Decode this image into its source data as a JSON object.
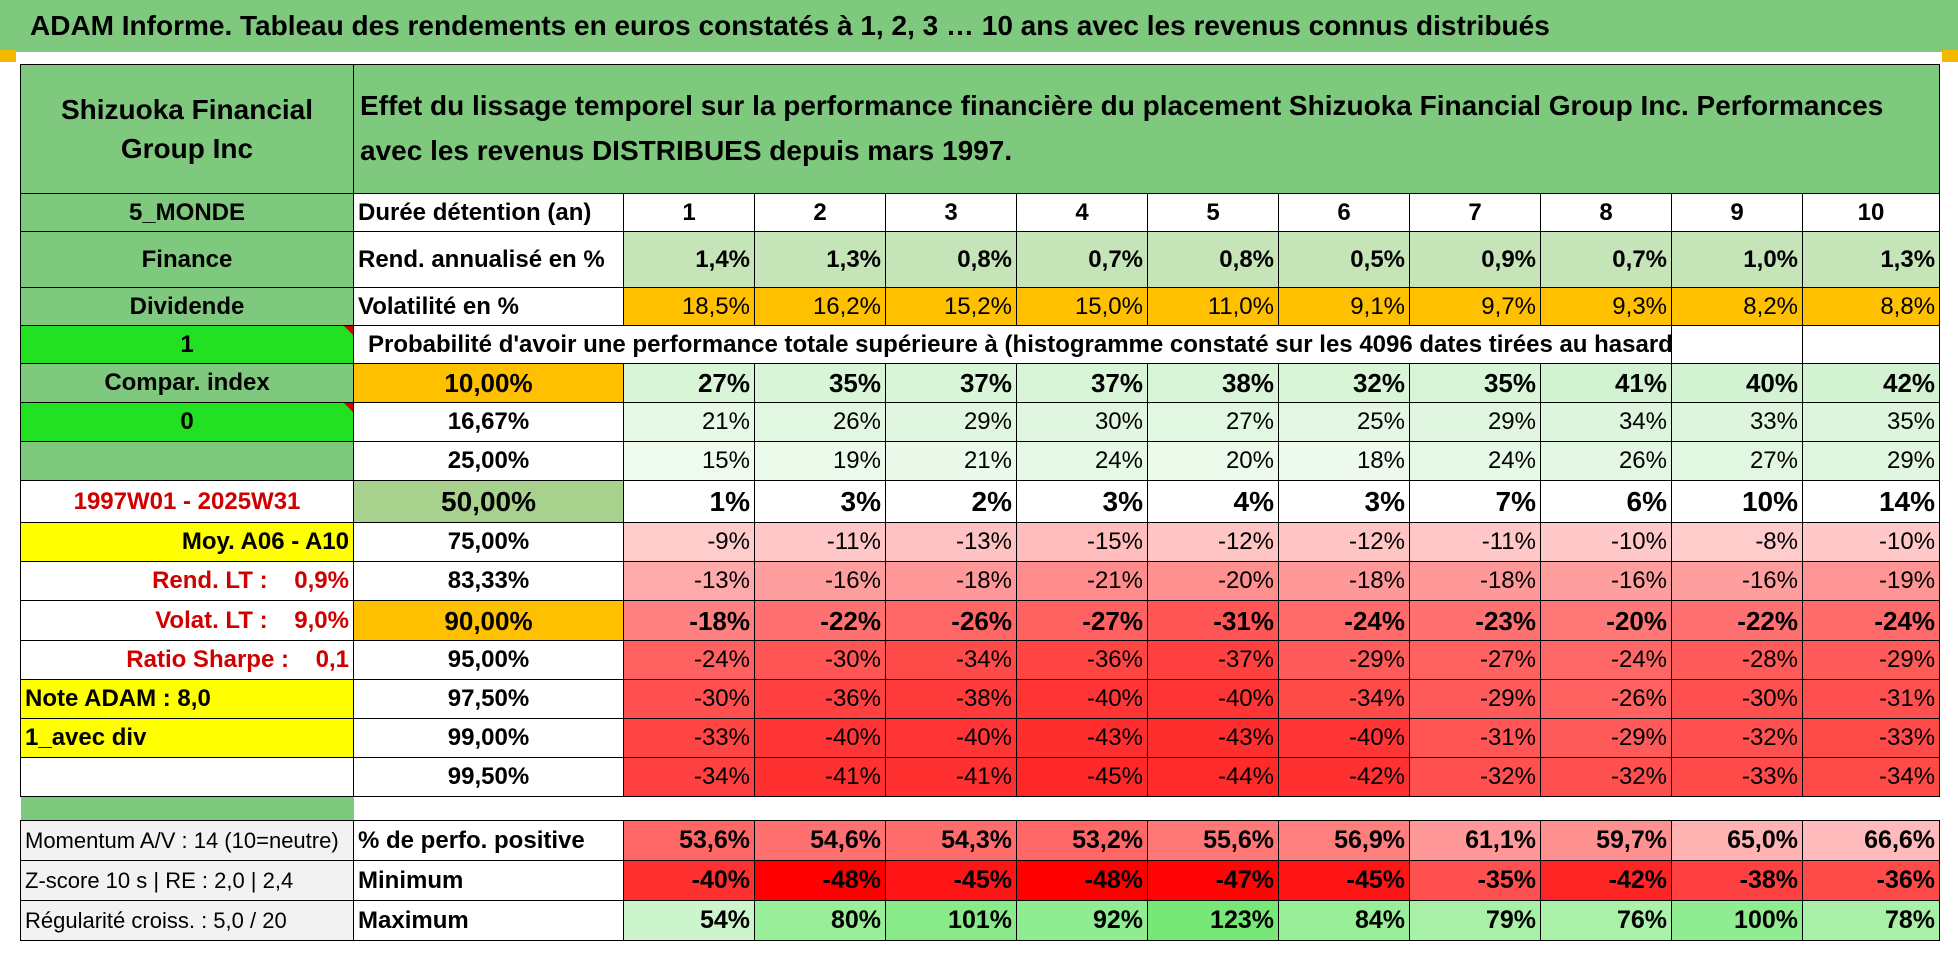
{
  "title": "ADAM Informe. Tableau des rendements en euros constatés à 1, 2, 3 … 10 ans avec les revenus connus distribués",
  "header": {
    "left": "Shizuoka Financial Group Inc",
    "right": "Effet du lissage temporel sur la performance financière du placement Shizuoka Financial Group Inc. Performances avec les revenus DISTRIBUES depuis mars 1997."
  },
  "row_duree": {
    "left": "5_MONDE",
    "label": "Durée détention (an)",
    "values": [
      "1",
      "2",
      "3",
      "4",
      "5",
      "6",
      "7",
      "8",
      "9",
      "10"
    ]
  },
  "row_rend": {
    "left": "Finance",
    "label": "Rend. annualisé en %",
    "values": [
      "1,4%",
      "1,3%",
      "0,8%",
      "0,7%",
      "0,8%",
      "0,5%",
      "0,9%",
      "0,7%",
      "1,0%",
      "1,3%"
    ]
  },
  "row_vol": {
    "left": "Dividende",
    "label": "Volatilité en %",
    "values": [
      "18,5%",
      "16,2%",
      "15,2%",
      "15,0%",
      "11,0%",
      "9,1%",
      "9,7%",
      "9,3%",
      "8,2%",
      "8,8%"
    ]
  },
  "row_prob": {
    "left": "1",
    "text": "Probabilité d'avoir une performance totale supérieure à (histogramme constaté sur les 4096 dates tirées au hasard)"
  },
  "prob_rows": [
    {
      "left": "Compar. index",
      "pct": "10,00%",
      "values": [
        "27%",
        "35%",
        "37%",
        "37%",
        "38%",
        "32%",
        "35%",
        "41%",
        "40%",
        "42%"
      ]
    },
    {
      "left": "0",
      "pct": "16,67%",
      "values": [
        "21%",
        "26%",
        "29%",
        "30%",
        "27%",
        "25%",
        "29%",
        "34%",
        "33%",
        "35%"
      ]
    },
    {
      "left": "",
      "pct": "25,00%",
      "values": [
        "15%",
        "19%",
        "21%",
        "24%",
        "20%",
        "18%",
        "24%",
        "26%",
        "27%",
        "29%"
      ]
    },
    {
      "left": "1997W01 - 2025W31",
      "pct": "50,00%",
      "values": [
        "1%",
        "3%",
        "2%",
        "3%",
        "4%",
        "3%",
        "7%",
        "6%",
        "10%",
        "14%"
      ]
    },
    {
      "left": "Moy. A06 - A10",
      "pct": "75,00%",
      "values": [
        "-9%",
        "-11%",
        "-13%",
        "-15%",
        "-12%",
        "-12%",
        "-11%",
        "-10%",
        "-8%",
        "-10%"
      ]
    },
    {
      "left": "Rend. LT :    0,9%",
      "pct": "83,33%",
      "values": [
        "-13%",
        "-16%",
        "-18%",
        "-21%",
        "-20%",
        "-18%",
        "-18%",
        "-16%",
        "-16%",
        "-19%"
      ]
    },
    {
      "left": "Volat. LT :    9,0%",
      "pct": "90,00%",
      "values": [
        "-18%",
        "-22%",
        "-26%",
        "-27%",
        "-31%",
        "-24%",
        "-23%",
        "-20%",
        "-22%",
        "-24%"
      ]
    },
    {
      "left": "Ratio Sharpe :    0,1",
      "pct": "95,00%",
      "values": [
        "-24%",
        "-30%",
        "-34%",
        "-36%",
        "-37%",
        "-29%",
        "-27%",
        "-24%",
        "-28%",
        "-29%"
      ]
    },
    {
      "left": "Note ADAM : 8,0",
      "pct": "97,50%",
      "values": [
        "-30%",
        "-36%",
        "-38%",
        "-40%",
        "-40%",
        "-34%",
        "-29%",
        "-26%",
        "-30%",
        "-31%"
      ]
    },
    {
      "left": "1_avec div",
      "pct": "99,00%",
      "values": [
        "-33%",
        "-40%",
        "-40%",
        "-43%",
        "-43%",
        "-40%",
        "-31%",
        "-29%",
        "-32%",
        "-33%"
      ]
    },
    {
      "left": "",
      "pct": "99,50%",
      "values": [
        "-34%",
        "-41%",
        "-41%",
        "-45%",
        "-44%",
        "-42%",
        "-32%",
        "-32%",
        "-33%",
        "-34%"
      ]
    }
  ],
  "stat_rows": [
    {
      "left": "Momentum A/V : 14 (10=neutre)",
      "label": "% de perfo. positive",
      "values": [
        "53,6%",
        "54,6%",
        "54,3%",
        "53,2%",
        "55,6%",
        "56,9%",
        "61,1%",
        "59,7%",
        "65,0%",
        "66,6%"
      ]
    },
    {
      "left": "Z-score 10 s | RE : 2,0 | 2,4",
      "label": "Minimum",
      "values": [
        "-40%",
        "-48%",
        "-45%",
        "-48%",
        "-47%",
        "-45%",
        "-35%",
        "-42%",
        "-38%",
        "-36%"
      ]
    },
    {
      "left": "Régularité croiss. : 5,0 / 20",
      "label": "Maximum",
      "values": [
        "54%",
        "80%",
        "101%",
        "92%",
        "123%",
        "84%",
        "79%",
        "76%",
        "100%",
        "78%"
      ]
    }
  ],
  "colors": {
    "header_green": "#7fc97f",
    "light_green": "#c5e4b8",
    "bright_green": "#22e022",
    "yellow": "#ffff00",
    "orange": "#ffc000",
    "red_text": "#d00000",
    "prob_cells": [
      [
        "#d8f5d8",
        "#d8f5d8",
        "#d8f5d8",
        "#d8f5d8",
        "#d8f5d8",
        "#d8f5d8",
        "#d8f5d8",
        "#d2f2d2",
        "#d2f2d2",
        "#d2f2d2"
      ],
      [
        "#e6f8e6",
        "#e2f7e2",
        "#e0f6e0",
        "#e0f6e0",
        "#e2f7e2",
        "#e4f7e4",
        "#e0f6e0",
        "#dcf5dc",
        "#dcf5dc",
        "#dcf5dc"
      ],
      [
        "#f0fbf0",
        "#ecfaec",
        "#eaf9ea",
        "#e6f8e6",
        "#ecfaec",
        "#eefaee",
        "#e6f8e6",
        "#e4f7e4",
        "#e2f7e2",
        "#e0f6e0"
      ],
      [
        "#ffffff",
        "#ffffff",
        "#ffffff",
        "#ffffff",
        "#ffffff",
        "#ffffff",
        "#ffffff",
        "#ffffff",
        "#ffffff",
        "#ffffff"
      ],
      [
        "#ffcccc",
        "#ffc7c7",
        "#ffc2c2",
        "#ffbdbd",
        "#ffc4c4",
        "#ffc4c4",
        "#ffc7c7",
        "#ffc9c9",
        "#ffcccc",
        "#ffc9c9"
      ],
      [
        "#ffaaaa",
        "#ff9e9e",
        "#ff9999",
        "#ff8c8c",
        "#ff9090",
        "#ff9999",
        "#ff9999",
        "#ff9e9e",
        "#ff9e9e",
        "#ff9494"
      ],
      [
        "#ff8080",
        "#ff7070",
        "#ff6666",
        "#ff6060",
        "#ff5555",
        "#ff6a6a",
        "#ff7070",
        "#ff7777",
        "#ff7070",
        "#ff6a6a"
      ],
      [
        "#ff6060",
        "#ff5555",
        "#ff4a4a",
        "#ff4444",
        "#ff4040",
        "#ff5a5a",
        "#ff6060",
        "#ff6666",
        "#ff5a5a",
        "#ff5a5a"
      ],
      [
        "#ff5050",
        "#ff4040",
        "#ff3a3a",
        "#ff3535",
        "#ff3535",
        "#ff4a4a",
        "#ff5a5a",
        "#ff6060",
        "#ff5050",
        "#ff5050"
      ],
      [
        "#ff4444",
        "#ff3535",
        "#ff3535",
        "#ff2e2e",
        "#ff2e2e",
        "#ff3535",
        "#ff5555",
        "#ff5a5a",
        "#ff5050",
        "#ff4a4a"
      ],
      [
        "#ff4040",
        "#ff3030",
        "#ff3030",
        "#ff2828",
        "#ff2a2a",
        "#ff3030",
        "#ff5050",
        "#ff5050",
        "#ff4a4a",
        "#ff4a4a"
      ]
    ],
    "stat_cells": [
      [
        "#ff6666",
        "#ff7070",
        "#ff6c6c",
        "#ff6666",
        "#ff7777",
        "#ff7f7f",
        "#ff9999",
        "#ff9090",
        "#ffb3b3",
        "#ffbbbb"
      ],
      [
        "#ff3030",
        "#ff0000",
        "#ff1515",
        "#ff0000",
        "#ff0505",
        "#ff1515",
        "#ff5050",
        "#ff2525",
        "#ff4040",
        "#ff4a4a"
      ],
      [
        "#ccf5cc",
        "#99ee99",
        "#88ea88",
        "#90ec90",
        "#77e877",
        "#99ee99",
        "#a8f0a8",
        "#aaf1aa",
        "#90ec90",
        "#a8f0a8"
      ]
    ]
  }
}
